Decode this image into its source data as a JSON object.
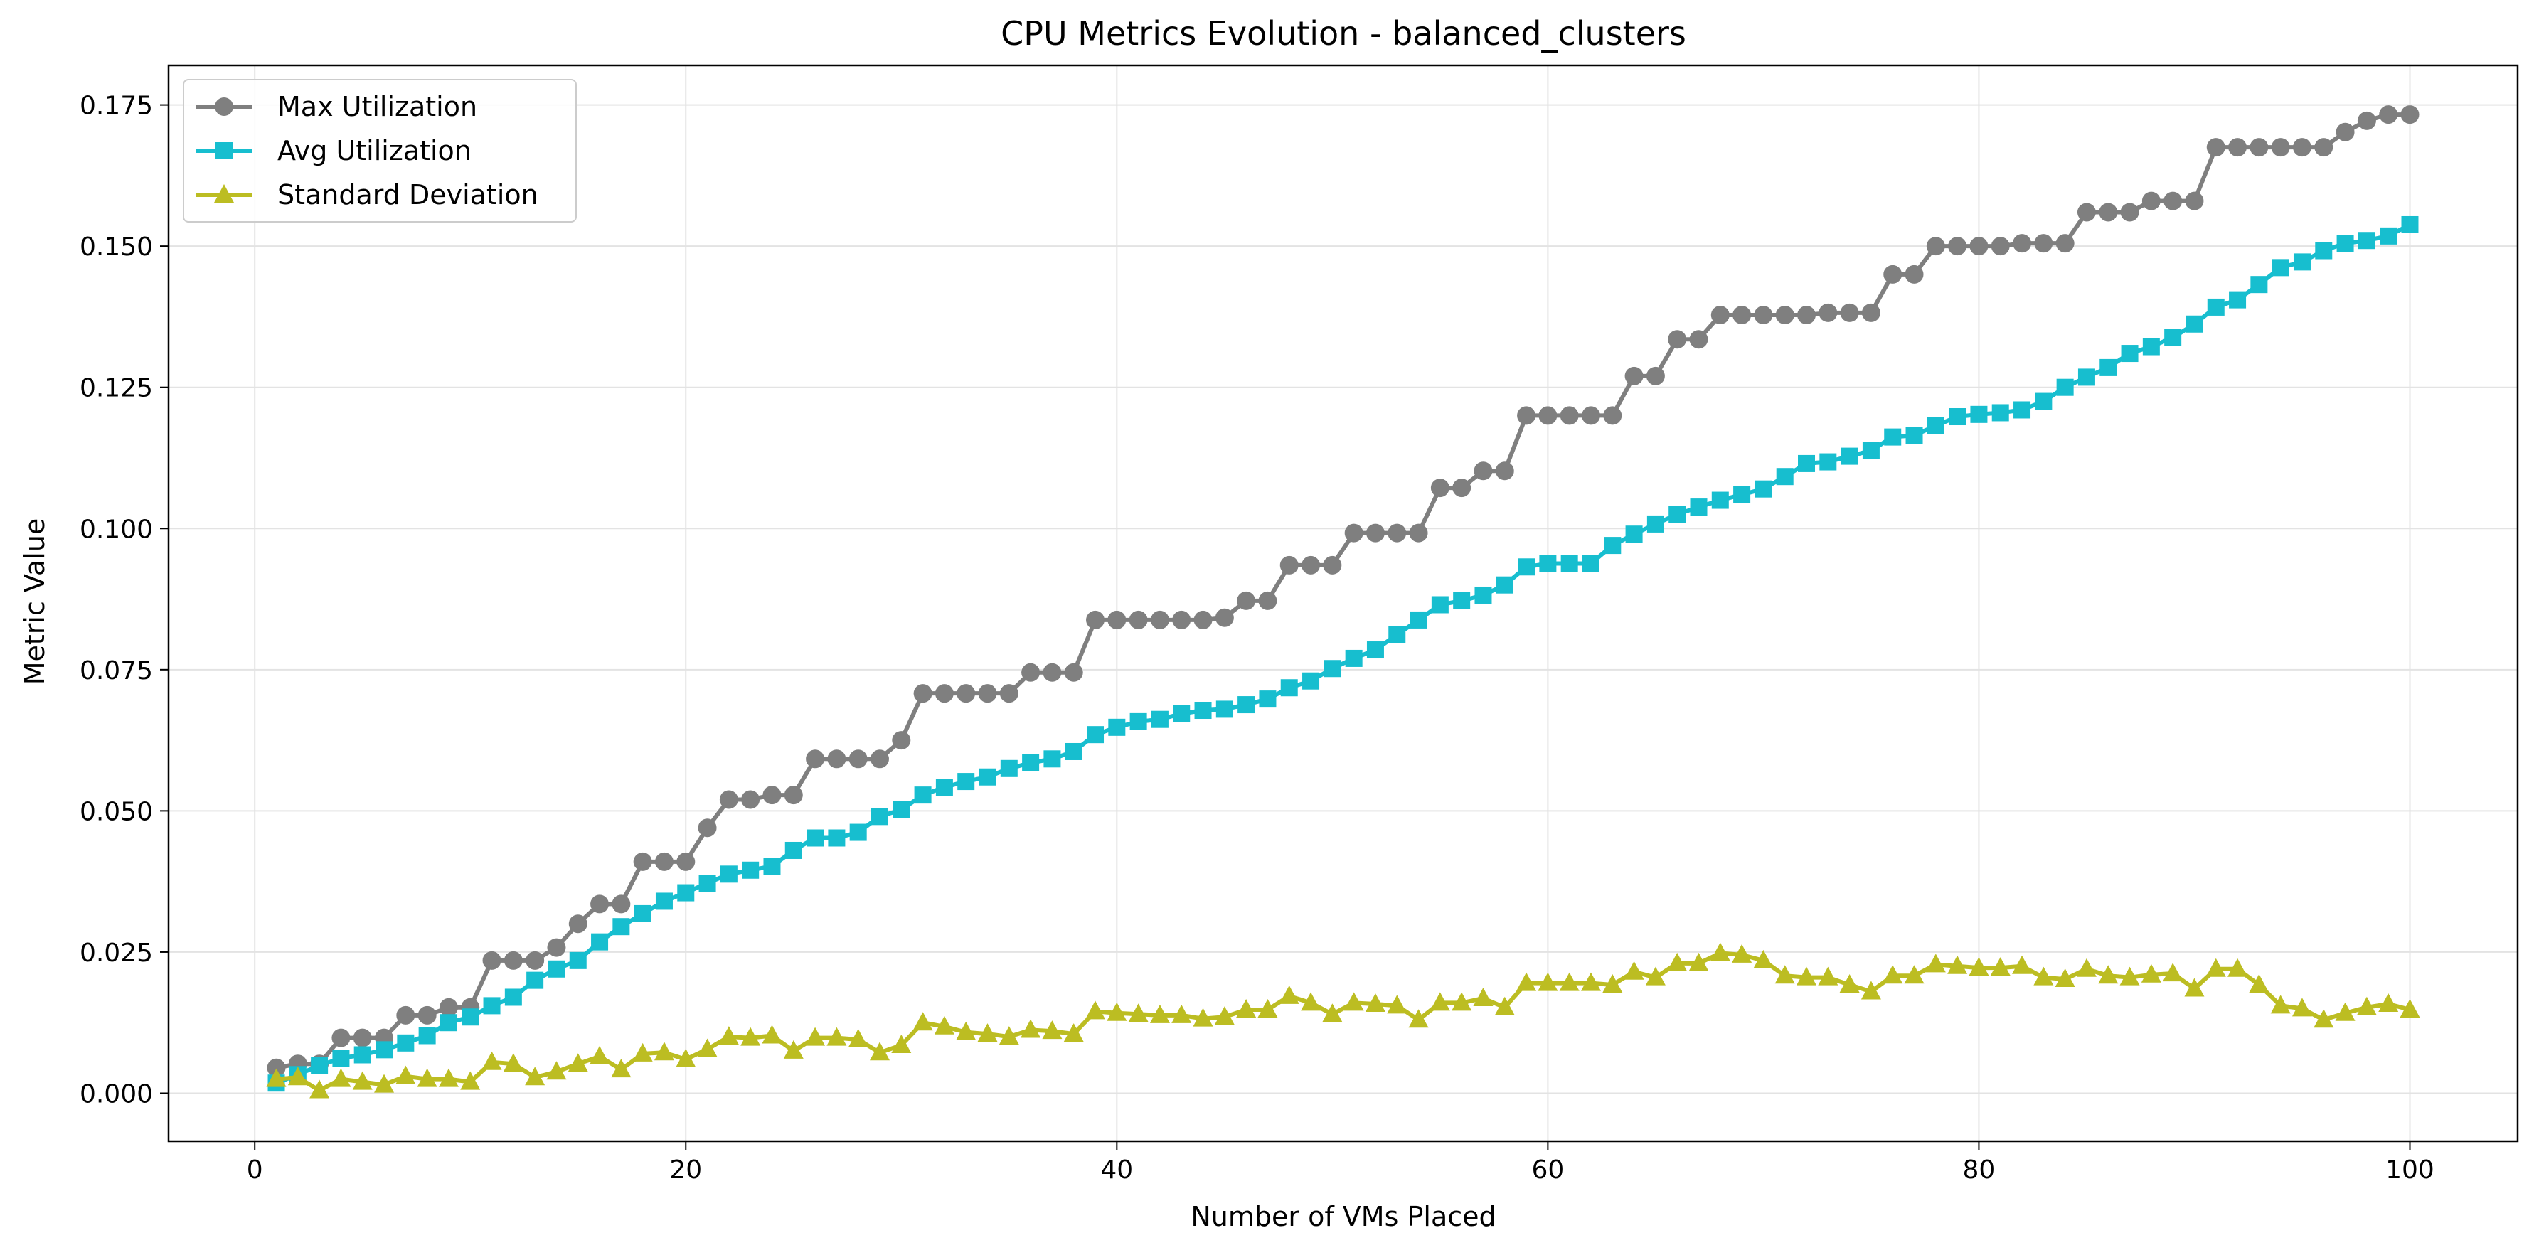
{
  "chart_data": {
    "type": "line",
    "title": "CPU Metrics Evolution - balanced_clusters",
    "xlabel": "Number of VMs Placed",
    "ylabel": "Metric Value",
    "xlim": [
      -4,
      105
    ],
    "ylim": [
      -0.0085,
      0.182
    ],
    "xticks": [
      0,
      20,
      40,
      60,
      80,
      100
    ],
    "xtick_labels": [
      "0",
      "20",
      "40",
      "60",
      "80",
      "100"
    ],
    "yticks": [
      0.0,
      0.025,
      0.05,
      0.075,
      0.1,
      0.125,
      0.15,
      0.175
    ],
    "ytick_labels": [
      "0.000",
      "0.025",
      "0.050",
      "0.075",
      "0.100",
      "0.125",
      "0.150",
      "0.175"
    ],
    "grid": true,
    "legend_position": "upper-left",
    "x": [
      1,
      2,
      3,
      4,
      5,
      6,
      7,
      8,
      9,
      10,
      11,
      12,
      13,
      14,
      15,
      16,
      17,
      18,
      19,
      20,
      21,
      22,
      23,
      24,
      25,
      26,
      27,
      28,
      29,
      30,
      31,
      32,
      33,
      34,
      35,
      36,
      37,
      38,
      39,
      40,
      41,
      42,
      43,
      44,
      45,
      46,
      47,
      48,
      49,
      50,
      51,
      52,
      53,
      54,
      55,
      56,
      57,
      58,
      59,
      60,
      61,
      62,
      63,
      64,
      65,
      66,
      67,
      68,
      69,
      70,
      71,
      72,
      73,
      74,
      75,
      76,
      77,
      78,
      79,
      80,
      81,
      82,
      83,
      84,
      85,
      86,
      87,
      88,
      89,
      90,
      91,
      92,
      93,
      94,
      95,
      96,
      97,
      98,
      99,
      100
    ],
    "series": [
      {
        "name": "Max Utilization",
        "color": "#7f7f7f",
        "marker": "circle",
        "values": [
          0.0045,
          0.0052,
          0.0052,
          0.0098,
          0.0098,
          0.0098,
          0.0138,
          0.0138,
          0.0152,
          0.0152,
          0.0235,
          0.0235,
          0.0235,
          0.0258,
          0.03,
          0.0335,
          0.0335,
          0.041,
          0.041,
          0.041,
          0.047,
          0.052,
          0.052,
          0.0528,
          0.0528,
          0.0592,
          0.0592,
          0.0592,
          0.0592,
          0.0625,
          0.0708,
          0.0708,
          0.0708,
          0.0708,
          0.0708,
          0.0745,
          0.0745,
          0.0745,
          0.0838,
          0.0838,
          0.0838,
          0.0838,
          0.0838,
          0.0838,
          0.0842,
          0.0872,
          0.0872,
          0.0935,
          0.0935,
          0.0935,
          0.0992,
          0.0992,
          0.0992,
          0.0992,
          0.1072,
          0.1072,
          0.1102,
          0.1102,
          0.12,
          0.12,
          0.12,
          0.12,
          0.12,
          0.127,
          0.127,
          0.1335,
          0.1335,
          0.1378,
          0.1378,
          0.1378,
          0.1378,
          0.1378,
          0.1382,
          0.1382,
          0.1382,
          0.145,
          0.145,
          0.15,
          0.15,
          0.15,
          0.15,
          0.1505,
          0.1505,
          0.1505,
          0.156,
          0.156,
          0.156,
          0.158,
          0.158,
          0.158,
          0.1675,
          0.1675,
          0.1675,
          0.1675,
          0.1675,
          0.1675,
          0.1702,
          0.1722,
          0.1733,
          0.1733
        ]
      },
      {
        "name": "Avg Utilization",
        "color": "#17becf",
        "marker": "square",
        "values": [
          0.0018,
          0.0033,
          0.0049,
          0.0062,
          0.0068,
          0.0077,
          0.0089,
          0.0102,
          0.0125,
          0.0135,
          0.0155,
          0.017,
          0.02,
          0.022,
          0.0235,
          0.0268,
          0.0295,
          0.0318,
          0.034,
          0.0355,
          0.0372,
          0.0388,
          0.0395,
          0.0402,
          0.043,
          0.0452,
          0.0452,
          0.0462,
          0.049,
          0.0502,
          0.0528,
          0.0542,
          0.0552,
          0.056,
          0.0575,
          0.0585,
          0.0592,
          0.0605,
          0.0635,
          0.0648,
          0.0658,
          0.0662,
          0.0672,
          0.0678,
          0.068,
          0.0688,
          0.0698,
          0.0718,
          0.073,
          0.0752,
          0.077,
          0.0785,
          0.0812,
          0.0838,
          0.0865,
          0.0872,
          0.0882,
          0.09,
          0.0932,
          0.0938,
          0.0938,
          0.0938,
          0.097,
          0.099,
          0.1008,
          0.1025,
          0.1038,
          0.105,
          0.106,
          0.107,
          0.1092,
          0.1115,
          0.1118,
          0.1128,
          0.1138,
          0.1162,
          0.1165,
          0.1182,
          0.1198,
          0.1202,
          0.1205,
          0.121,
          0.1225,
          0.125,
          0.1268,
          0.1285,
          0.131,
          0.1322,
          0.1338,
          0.1362,
          0.1392,
          0.1405,
          0.1432,
          0.1462,
          0.1472,
          0.1492,
          0.1505,
          0.151,
          0.1518,
          0.1538
        ]
      },
      {
        "name": "Standard Deviation",
        "color": "#bcbd22",
        "marker": "triangle",
        "values": [
          0.0025,
          0.0028,
          0.0005,
          0.0025,
          0.002,
          0.0015,
          0.003,
          0.0025,
          0.0025,
          0.002,
          0.0055,
          0.0052,
          0.0028,
          0.0038,
          0.0052,
          0.0065,
          0.0042,
          0.007,
          0.0072,
          0.006,
          0.0078,
          0.01,
          0.0098,
          0.0102,
          0.0075,
          0.0098,
          0.0098,
          0.0095,
          0.0072,
          0.0085,
          0.0125,
          0.0118,
          0.0108,
          0.0105,
          0.01,
          0.0112,
          0.011,
          0.0105,
          0.0145,
          0.0142,
          0.014,
          0.0138,
          0.0138,
          0.0132,
          0.0135,
          0.0148,
          0.0148,
          0.0172,
          0.016,
          0.014,
          0.016,
          0.0158,
          0.0155,
          0.013,
          0.016,
          0.016,
          0.0168,
          0.0152,
          0.0195,
          0.0195,
          0.0195,
          0.0195,
          0.0192,
          0.0215,
          0.0205,
          0.023,
          0.023,
          0.0248,
          0.0245,
          0.0235,
          0.0208,
          0.0205,
          0.0205,
          0.0192,
          0.018,
          0.0208,
          0.0208,
          0.0228,
          0.0225,
          0.0222,
          0.0222,
          0.0225,
          0.0205,
          0.0202,
          0.022,
          0.0208,
          0.0205,
          0.021,
          0.0212,
          0.0185,
          0.022,
          0.022,
          0.0192,
          0.0155,
          0.015,
          0.013,
          0.0142,
          0.0152,
          0.0158,
          0.0148
        ]
      }
    ]
  }
}
